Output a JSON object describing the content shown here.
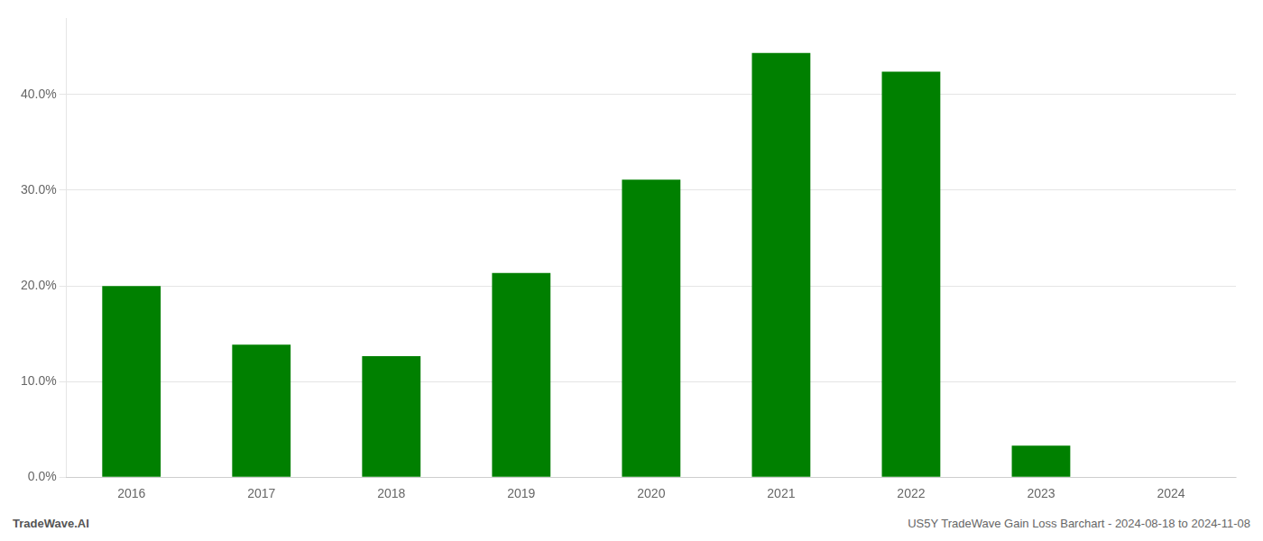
{
  "chart_data": {
    "type": "bar",
    "categories": [
      "2016",
      "2017",
      "2018",
      "2019",
      "2020",
      "2021",
      "2022",
      "2023",
      "2024"
    ],
    "values": [
      0.1997,
      0.1385,
      0.1265,
      0.2135,
      0.311,
      0.4435,
      0.424,
      0.033,
      0.0
    ],
    "color": "#008000",
    "ylim": [
      0,
      0.48
    ],
    "yticks": [
      {
        "value": 0.0,
        "label": "0.0%"
      },
      {
        "value": 0.1,
        "label": "10.0%"
      },
      {
        "value": 0.2,
        "label": "20.0%"
      },
      {
        "value": 0.3,
        "label": "30.0%"
      },
      {
        "value": 0.4,
        "label": "40.0%"
      }
    ],
    "grid": true,
    "annotations": [
      "TradeWave.AI",
      "US5Y TradeWave Gain Loss Barchart - 2024-08-18 to 2024-11-08"
    ]
  }
}
